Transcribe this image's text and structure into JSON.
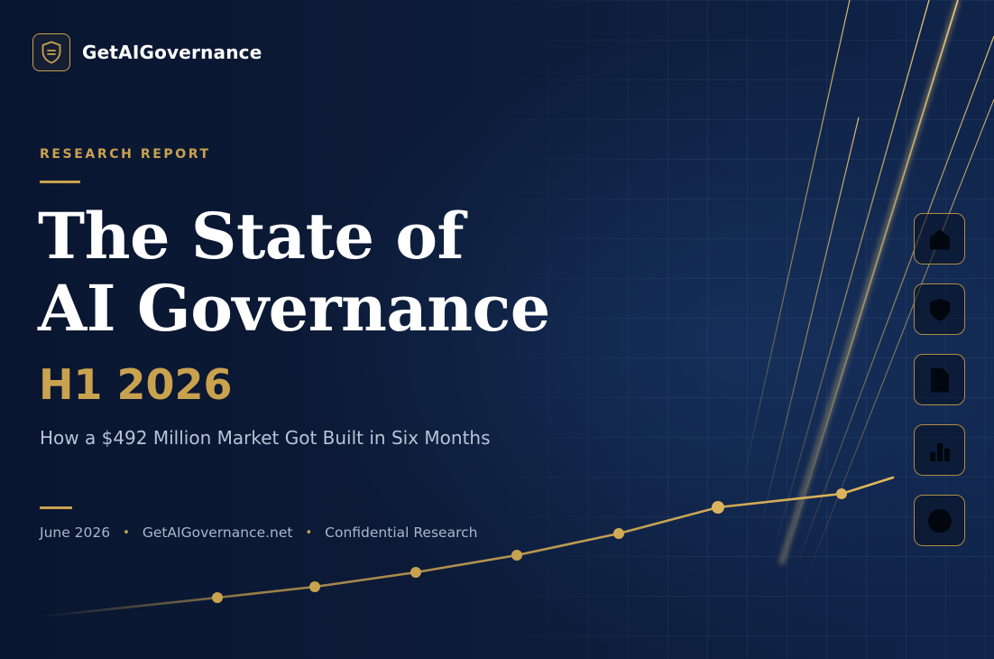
{
  "brand": {
    "name": "GetAIGovernance",
    "logo_icon": "shield-icon"
  },
  "hero": {
    "eyebrow": "RESEARCH REPORT",
    "title_line_1": "The State of",
    "title_line_2": "AI Governance",
    "period": "H1 2026",
    "subtitle": "How a $492 Million Market Got Built in Six Months"
  },
  "meta": {
    "date": "June 2026",
    "site": "GetAIGovernance.net",
    "classification": "Confidential Research",
    "separator": "•"
  },
  "side_icons": [
    {
      "name": "home-icon"
    },
    {
      "name": "shield-icon"
    },
    {
      "name": "document-icon"
    },
    {
      "name": "bar-chart-icon"
    },
    {
      "name": "circle-icon"
    }
  ],
  "colors": {
    "background": "#0b1730",
    "accent_gold": "#c9a24f",
    "title_text": "#ffffff",
    "subtitle_text": "#b8c3d6"
  }
}
